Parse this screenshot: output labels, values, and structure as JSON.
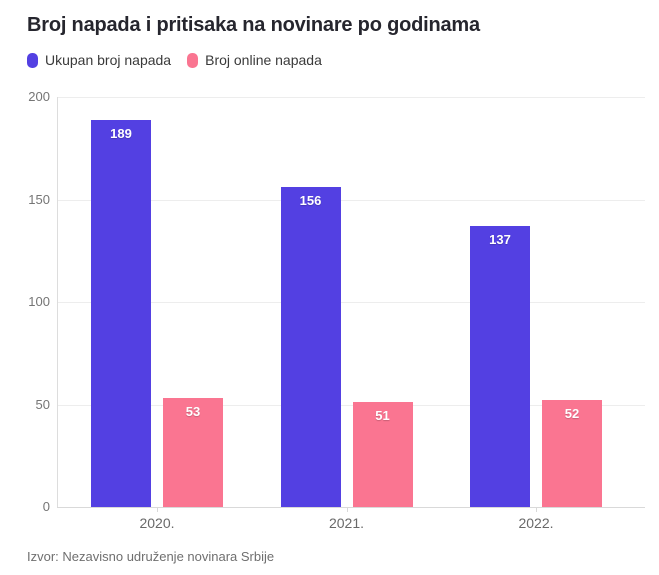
{
  "title": "Broj napada i pritisaka na novinare po godinama",
  "legend": {
    "items": [
      {
        "label": "Ukupan broj napada",
        "color": "#5340e2"
      },
      {
        "label": "Broj online napada",
        "color": "#fa7591"
      }
    ]
  },
  "chart_data": {
    "type": "bar",
    "grouped": true,
    "title": "Broj napada i pritisaka na novinare po godinama",
    "categories": [
      "2020.",
      "2021.",
      "2022."
    ],
    "series": [
      {
        "name": "Ukupan broj napada",
        "color": "#5340e2",
        "values": [
          189,
          156,
          137
        ]
      },
      {
        "name": "Broj online napada",
        "color": "#fa7591",
        "values": [
          53,
          51,
          52
        ]
      }
    ],
    "xlabel": "",
    "ylabel": "",
    "ylim": [
      0,
      200
    ],
    "yticks": [
      0,
      50,
      100,
      150,
      200
    ],
    "grid": "horizontal",
    "legend_position": "top-left",
    "value_labels": "inside-top",
    "value_label_color": "#ffffff"
  },
  "colors": {
    "purple": "#5340e2",
    "pink": "#fa7591",
    "gridline": "#ededed",
    "axis": "#d9d9d9",
    "title_text": "#26262e",
    "tick_text": "#757575"
  },
  "source": "Izvor: Nezavisno udruženje novinara Srbije"
}
